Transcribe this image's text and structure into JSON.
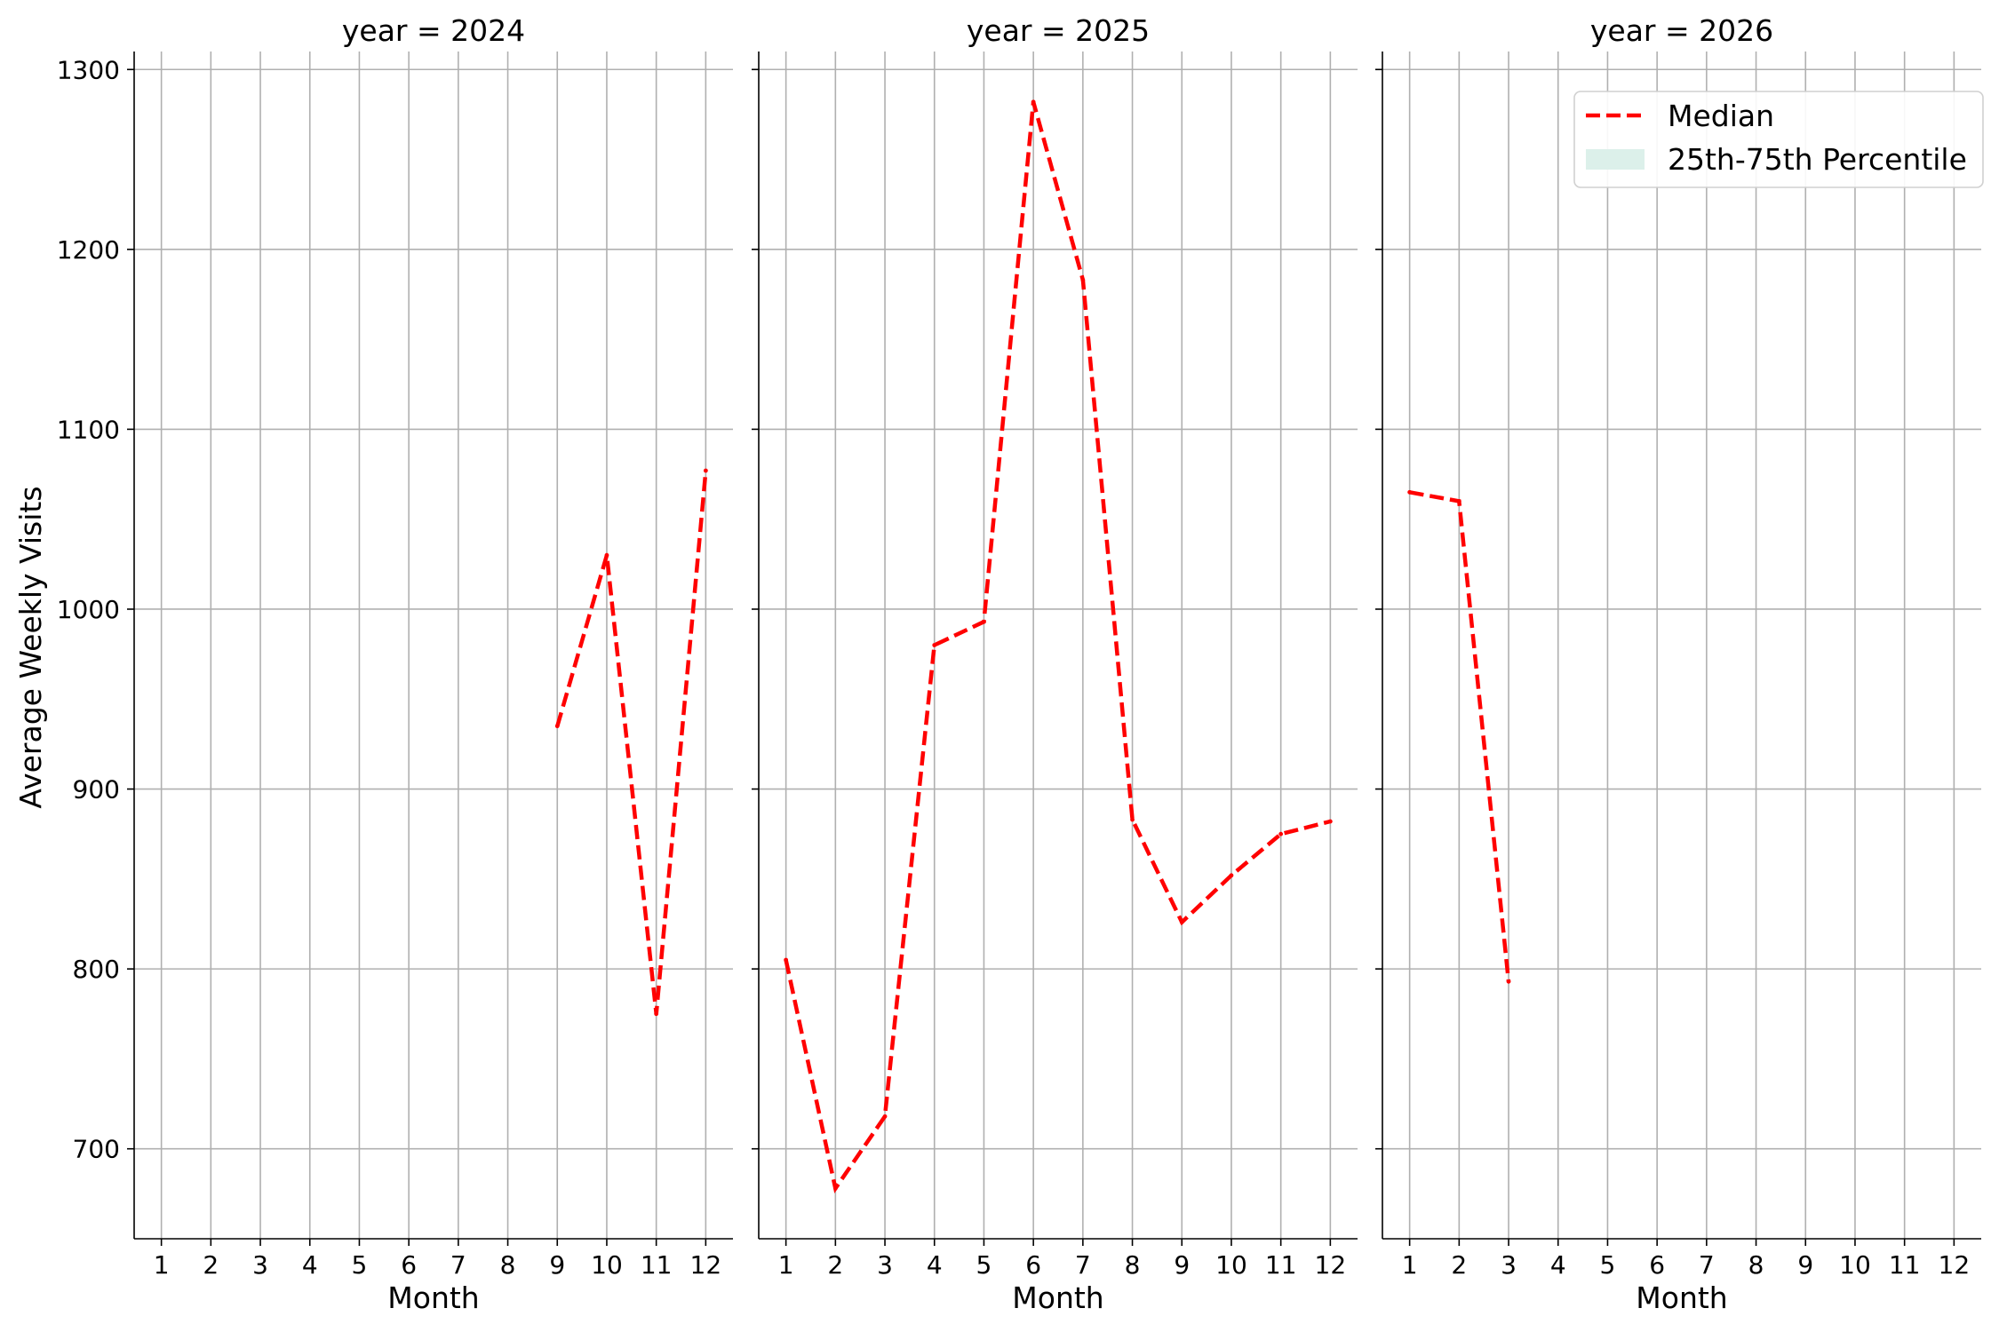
{
  "chart_data": {
    "type": "line",
    "facet_variable": "year",
    "x_label": "Month",
    "y_label": "Average Weekly Visits",
    "x_ticks": [
      1,
      2,
      3,
      4,
      5,
      6,
      7,
      8,
      9,
      10,
      11,
      12
    ],
    "y_ticks": [
      700,
      800,
      900,
      1000,
      1100,
      1200,
      1300
    ],
    "xlim": [
      0.45,
      12.55
    ],
    "ylim": [
      650,
      1310
    ],
    "grid": true,
    "legend": {
      "placement": "top-right of last panel",
      "entries": [
        {
          "label": "Median",
          "style": "dashed-line",
          "color": "#ff0000"
        },
        {
          "label": "25th-75th Percentile",
          "style": "band",
          "color": "#dcf0ea"
        }
      ]
    },
    "colors": {
      "median": "#ff0000",
      "band": "#dcf0ea",
      "grid": "#b0b0b0"
    },
    "panels": [
      {
        "title": "year = 2024",
        "series": [
          {
            "name": "Median",
            "x": [
              9,
              10,
              11,
              12
            ],
            "y": [
              935,
              1030,
              775,
              1077
            ]
          }
        ]
      },
      {
        "title": "year = 2025",
        "series": [
          {
            "name": "Median",
            "x": [
              1,
              2,
              3,
              4,
              5,
              6,
              7,
              8,
              9,
              10,
              11,
              12
            ],
            "y": [
              805,
              678,
              718,
              980,
              993,
              1282,
              1183,
              883,
              826,
              852,
              875,
              882
            ]
          }
        ]
      },
      {
        "title": "year = 2026",
        "series": [
          {
            "name": "Median",
            "x": [
              1,
              2,
              3
            ],
            "y": [
              1065,
              1060,
              793
            ]
          }
        ]
      }
    ]
  }
}
